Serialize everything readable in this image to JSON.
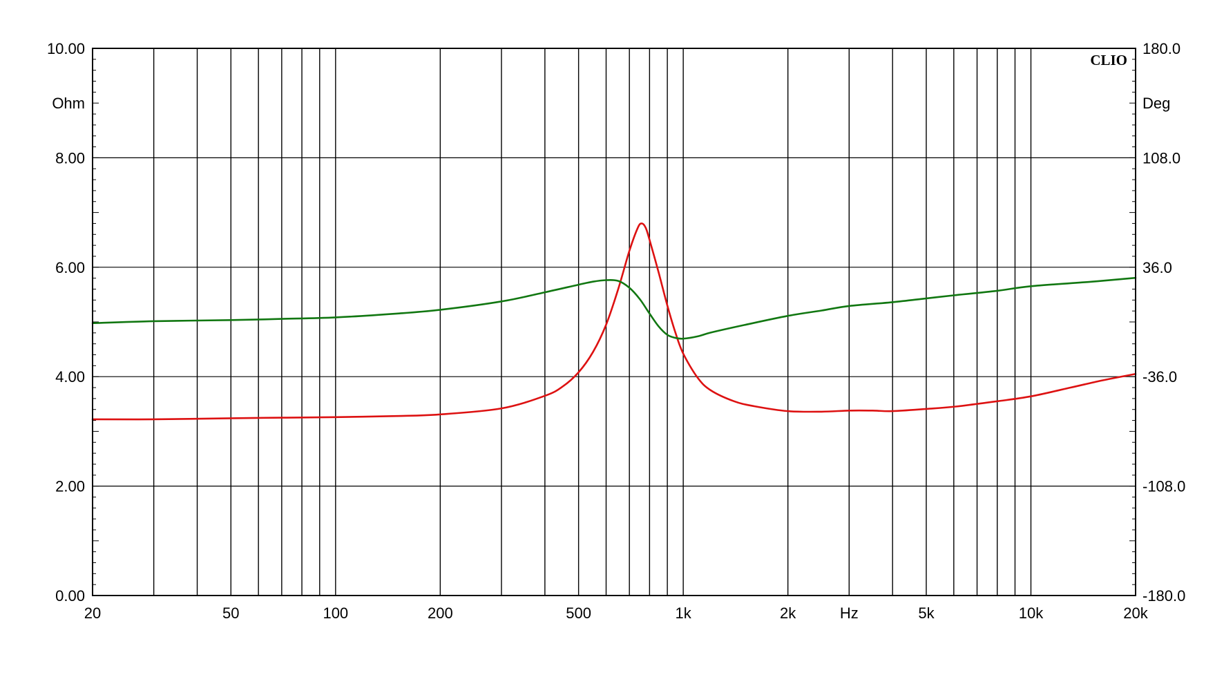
{
  "chart_data": {
    "type": "line",
    "brand": "CLIO",
    "left_axis": {
      "unit": "Ohm",
      "ylim": [
        0,
        10
      ],
      "tick_values": [
        0,
        2,
        4,
        6,
        8,
        10
      ],
      "tick_labels": [
        "0.00",
        "2.00",
        "4.00",
        "6.00",
        "8.00",
        "10.00"
      ]
    },
    "right_axis": {
      "unit": "Deg",
      "ylim": [
        -180,
        180
      ],
      "tick_values": [
        -180,
        -108,
        -36,
        36,
        108,
        180
      ],
      "tick_labels": [
        "-180.0",
        "-108.0",
        "-36.0",
        "36.0",
        "108.0",
        "180.0"
      ]
    },
    "x_axis": {
      "unit": "Hz",
      "scale": "log",
      "xlim": [
        20,
        20000
      ],
      "tick_values": [
        20,
        50,
        100,
        200,
        500,
        1000,
        2000,
        5000,
        10000,
        20000
      ],
      "tick_labels": [
        "20",
        "50",
        "100",
        "200",
        "500",
        "1k",
        "2k",
        "5k",
        "10k",
        "20k"
      ],
      "unit_label_at": 3000
    },
    "grid": true,
    "series": [
      {
        "axis": "left",
        "color": "#dd1111",
        "x": [
          20,
          30,
          50,
          70,
          100,
          150,
          200,
          300,
          400,
          450,
          500,
          550,
          600,
          650,
          700,
          740,
          760,
          780,
          800,
          850,
          900,
          950,
          1000,
          1100,
          1200,
          1400,
          1600,
          2000,
          2500,
          3000,
          3500,
          4000,
          5000,
          6000,
          8000,
          10000,
          13000,
          16000,
          20000
        ],
        "values": [
          3.22,
          3.22,
          3.24,
          3.25,
          3.26,
          3.28,
          3.31,
          3.42,
          3.65,
          3.82,
          4.08,
          4.45,
          4.95,
          5.6,
          6.3,
          6.72,
          6.8,
          6.72,
          6.5,
          5.9,
          5.3,
          4.8,
          4.42,
          3.98,
          3.75,
          3.55,
          3.46,
          3.37,
          3.36,
          3.38,
          3.38,
          3.37,
          3.41,
          3.45,
          3.55,
          3.64,
          3.8,
          3.93,
          4.05
        ]
      },
      {
        "axis": "right",
        "color": "#117711",
        "x": [
          20,
          30,
          50,
          70,
          100,
          150,
          200,
          300,
          400,
          500,
          550,
          600,
          650,
          700,
          750,
          800,
          850,
          900,
          950,
          1000,
          1100,
          1200,
          1500,
          2000,
          2500,
          3000,
          4000,
          5000,
          6000,
          8000,
          10000,
          15000,
          20000
        ],
        "values": [
          -0.8,
          0.5,
          1.2,
          2.0,
          3.0,
          5.5,
          8.0,
          13.5,
          19.5,
          24.5,
          26.5,
          27.5,
          27.0,
          22.5,
          15.0,
          5.5,
          -3.0,
          -8.5,
          -10.5,
          -11.0,
          -9.5,
          -7.0,
          -2.0,
          4.0,
          7.5,
          10.5,
          13.0,
          15.5,
          17.5,
          20.5,
          23.5,
          26.5,
          29.0
        ]
      }
    ]
  }
}
